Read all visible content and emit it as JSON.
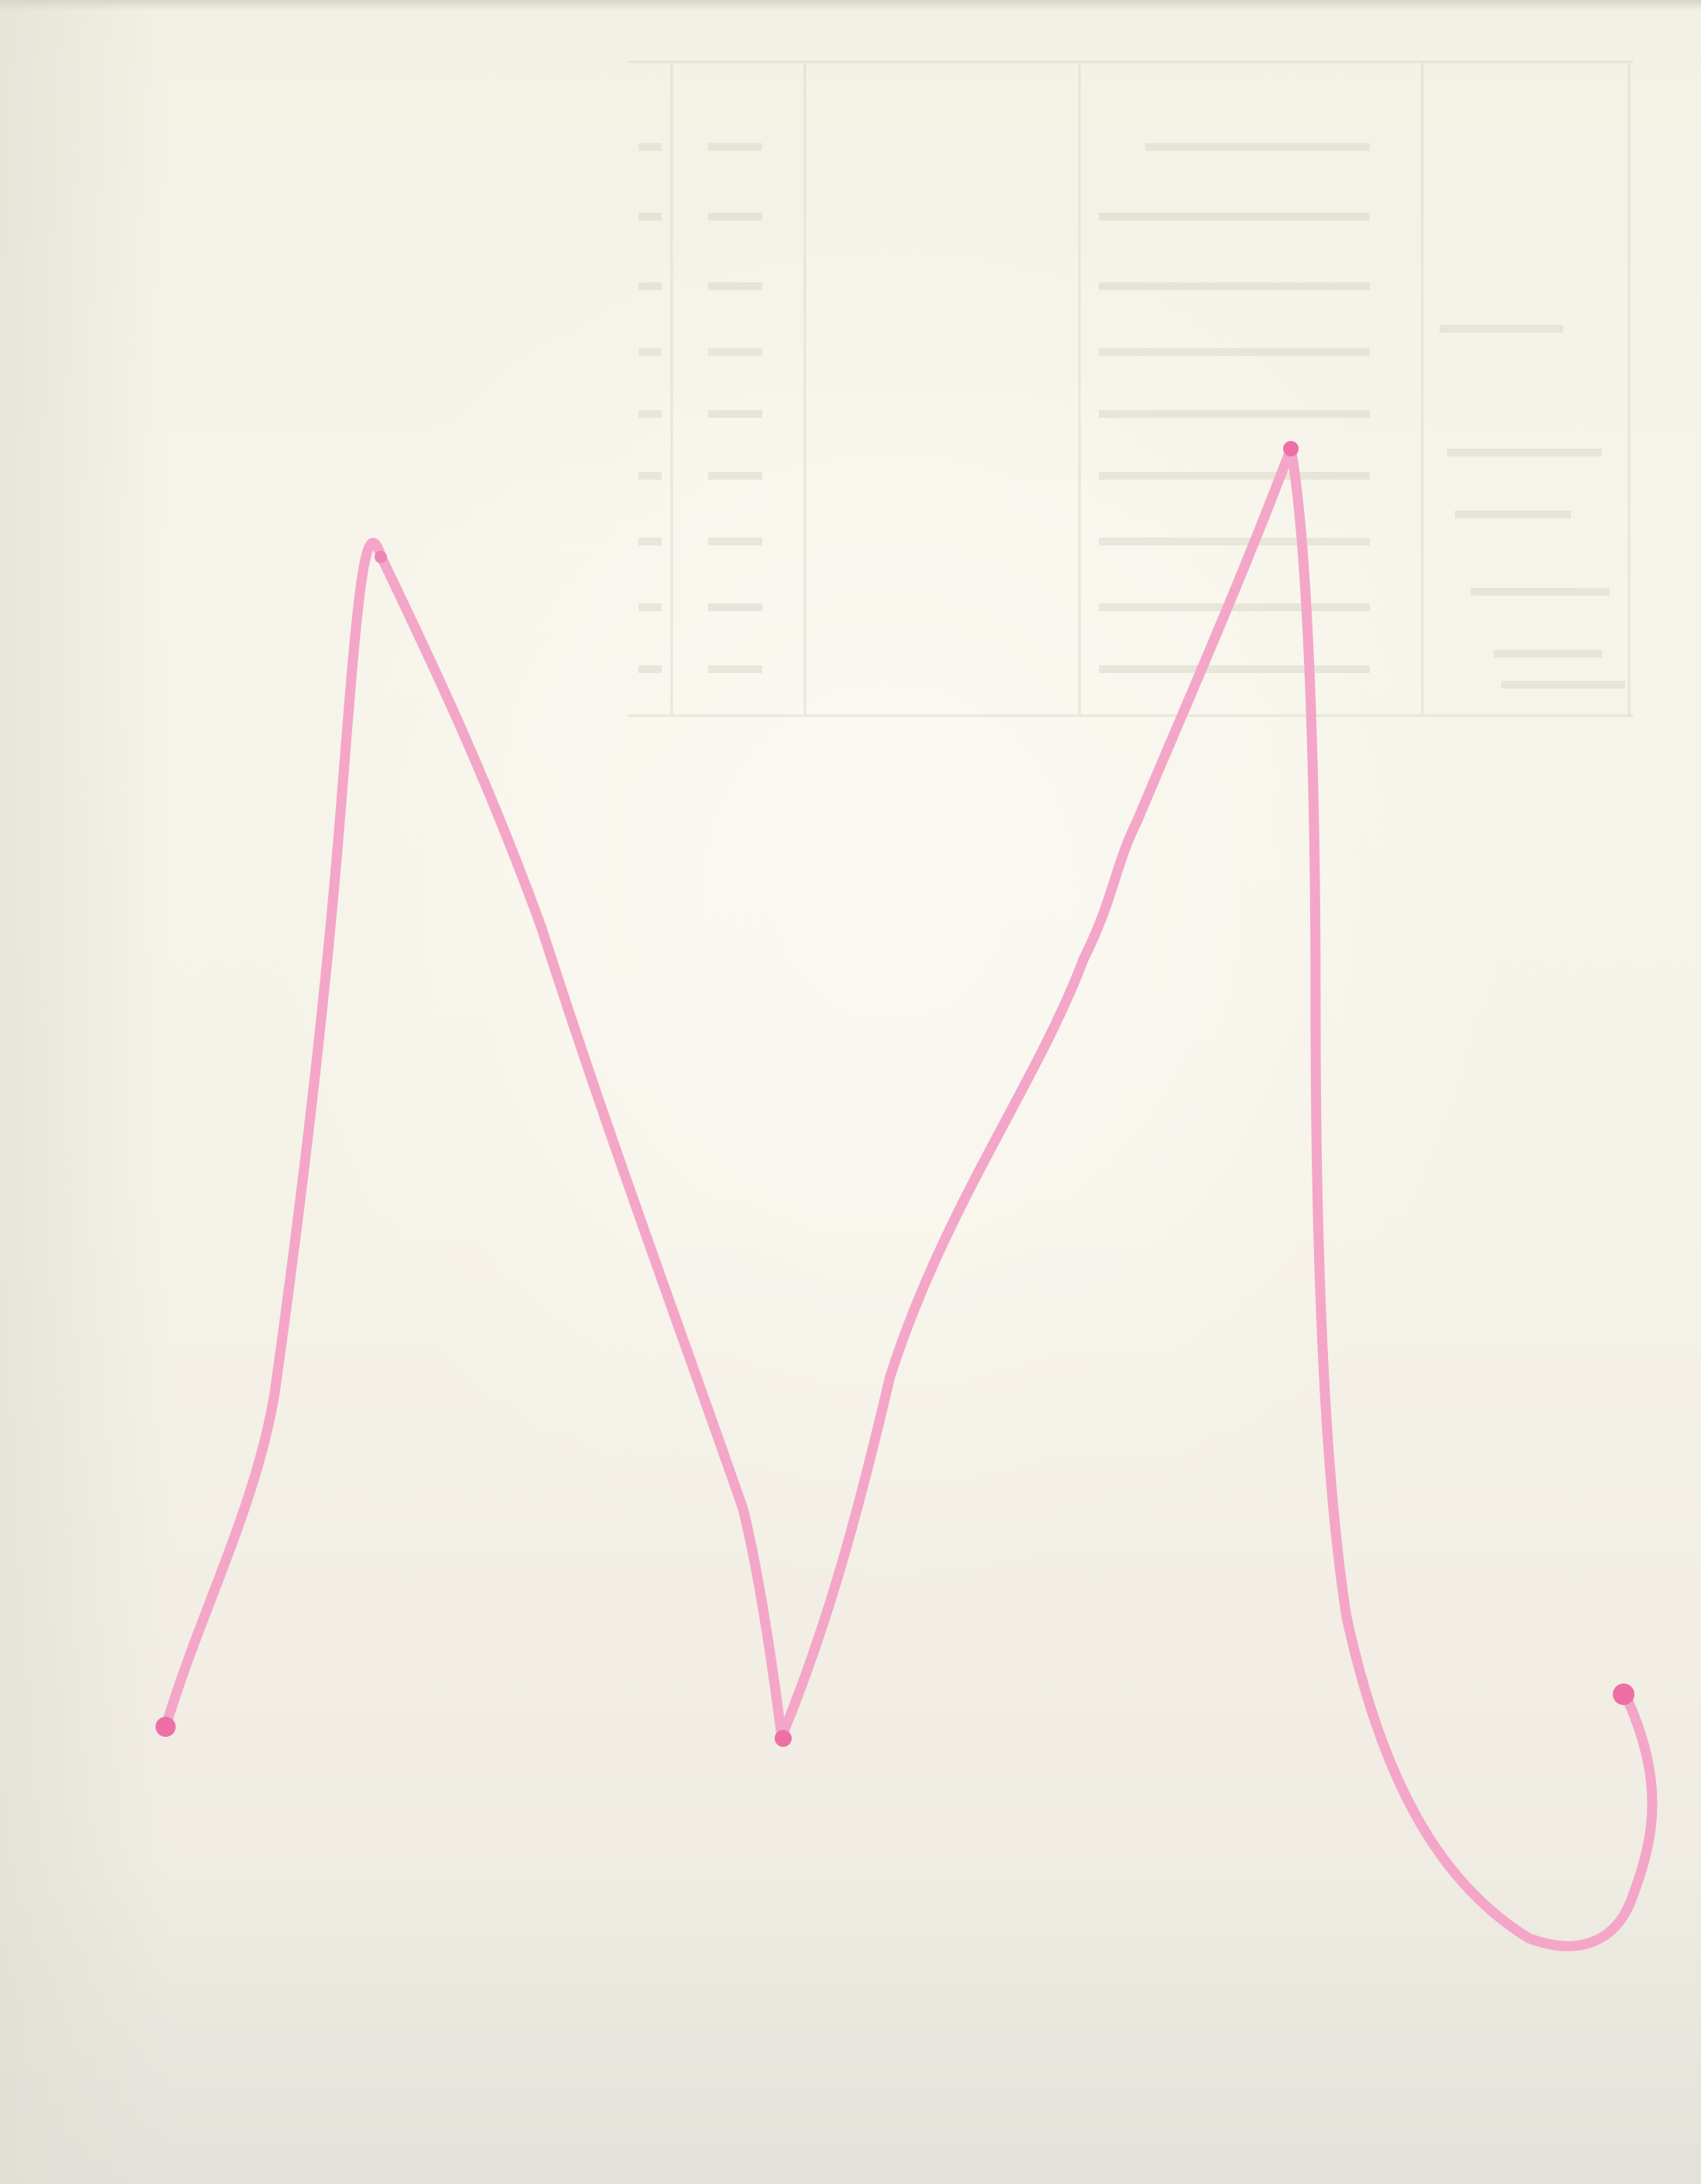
{
  "scene": {
    "description_type": "handwritten pink marker letter on paper",
    "colors": {
      "paper": "#f4f2e8",
      "ink": "#f4a6c8",
      "ink_dot": "#ee6fa6",
      "bleed_through": "#d8d4c6"
    }
  }
}
